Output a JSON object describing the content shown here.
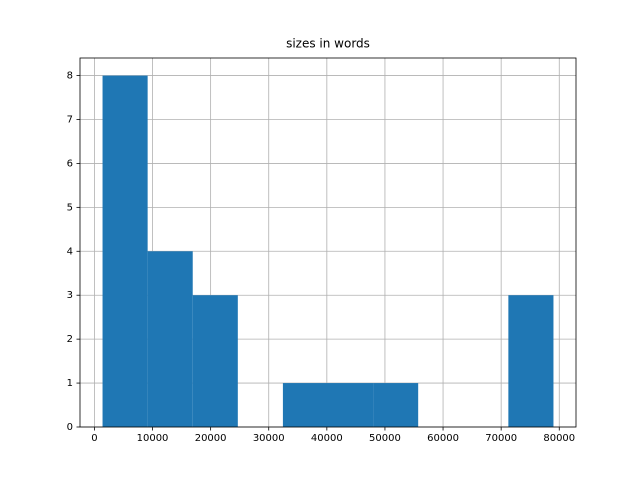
{
  "chart_data": {
    "type": "histogram",
    "title": "sizes in words",
    "bins": [
      1400,
      9160,
      16920,
      24680,
      32440,
      40200,
      47960,
      55720,
      63480,
      71240,
      79000
    ],
    "values": [
      8,
      4,
      3,
      0,
      1,
      1,
      1,
      0,
      0,
      3
    ],
    "color": "#1f77b4",
    "xlim": [
      -2480,
      82880
    ],
    "ylim": [
      0,
      8.4
    ],
    "xticks": [
      0,
      10000,
      20000,
      30000,
      40000,
      50000,
      60000,
      70000,
      80000
    ],
    "yticks": [
      0,
      1,
      2,
      3,
      4,
      5,
      6,
      7,
      8
    ],
    "grid": true
  }
}
